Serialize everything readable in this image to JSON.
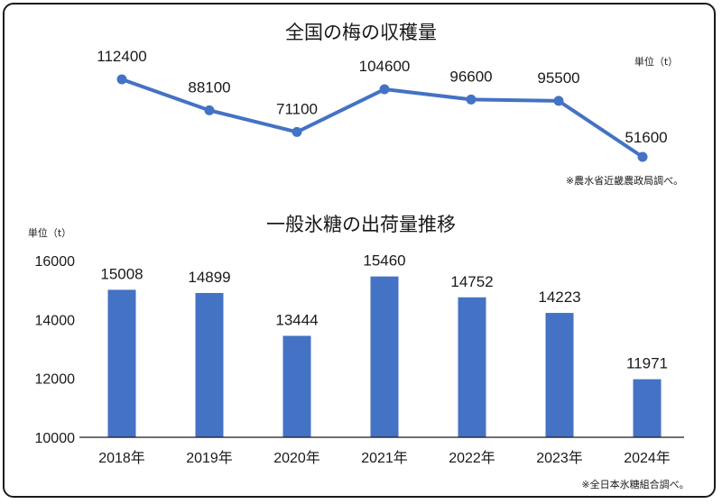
{
  "chart_data": [
    {
      "type": "line",
      "title": "全国の梅の収穫量",
      "unit_label": "単位（t）",
      "source": "※農水省近畿農政局調べ。",
      "categories": [
        "2018年",
        "2019年",
        "2020年",
        "2021年",
        "2022年",
        "2023年",
        "2024年"
      ],
      "values": [
        112400,
        88100,
        71100,
        104600,
        96600,
        95500,
        51600
      ],
      "color": "#4472c4"
    },
    {
      "type": "bar",
      "title": "一般氷糖の出荷量推移",
      "unit_label": "単位（t）",
      "source": "※全日本氷糖組合調べ。",
      "categories": [
        "2018年",
        "2019年",
        "2020年",
        "2021年",
        "2022年",
        "2023年",
        "2024年"
      ],
      "values": [
        15008,
        14899,
        13444,
        15460,
        14752,
        14223,
        11971
      ],
      "yticks": [
        "10000",
        "12000",
        "14000",
        "16000"
      ],
      "ylim": [
        10000,
        16000
      ],
      "color": "#4472c4"
    }
  ]
}
